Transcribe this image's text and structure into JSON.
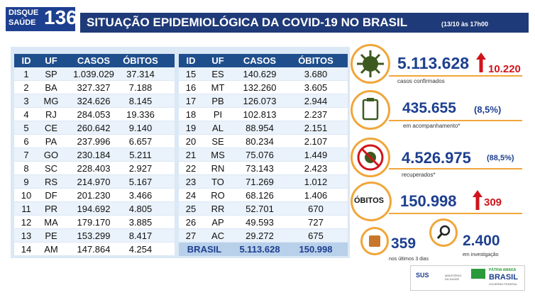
{
  "header": {
    "logo_top": "DISQUE",
    "logo_bottom": "SAÚDE",
    "logo_number": "136",
    "title": "SITUAÇÃO EPIDEMIOLÓGICA DA COVID-19 NO BRASIL",
    "timestamp": "(13/10 às 17h00"
  },
  "tables": [
    {
      "columns": [
        "ID",
        "UF",
        "CASOS",
        "ÓBITOS"
      ],
      "rows": [
        [
          "1",
          "SP",
          "1.039.029",
          "37.314"
        ],
        [
          "2",
          "BA",
          "327.327",
          "7.188"
        ],
        [
          "3",
          "MG",
          "324.626",
          "8.145"
        ],
        [
          "4",
          "RJ",
          "284.053",
          "19.336"
        ],
        [
          "5",
          "CE",
          "260.642",
          "9.140"
        ],
        [
          "6",
          "PA",
          "237.996",
          "6.657"
        ],
        [
          "7",
          "GO",
          "230.184",
          "5.211"
        ],
        [
          "8",
          "SC",
          "228.403",
          "2.927"
        ],
        [
          "9",
          "RS",
          "214.970",
          "5.167"
        ],
        [
          "10",
          "DF",
          "201.230",
          "3.466"
        ],
        [
          "11",
          "PR",
          "194.692",
          "4.805"
        ],
        [
          "12",
          "MA",
          "179.170",
          "3.885"
        ],
        [
          "13",
          "PE",
          "153.299",
          "8.417"
        ],
        [
          "14",
          "AM",
          "147.864",
          "4.254"
        ]
      ]
    },
    {
      "columns": [
        "ID",
        "UF",
        "CASOS",
        "ÓBITOS"
      ],
      "rows": [
        [
          "15",
          "ES",
          "140.629",
          "3.680"
        ],
        [
          "16",
          "MT",
          "132.260",
          "3.605"
        ],
        [
          "17",
          "PB",
          "126.073",
          "2.944"
        ],
        [
          "18",
          "PI",
          "102.813",
          "2.237"
        ],
        [
          "19",
          "AL",
          "88.954",
          "2.151"
        ],
        [
          "20",
          "SE",
          "80.234",
          "2.107"
        ],
        [
          "21",
          "MS",
          "75.076",
          "1.449"
        ],
        [
          "22",
          "RN",
          "73.143",
          "2.423"
        ],
        [
          "23",
          "TO",
          "71.269",
          "1.012"
        ],
        [
          "24",
          "RO",
          "68.126",
          "1.406"
        ],
        [
          "25",
          "RR",
          "52.701",
          "670"
        ],
        [
          "26",
          "AP",
          "49.593",
          "727"
        ],
        [
          "27",
          "AC",
          "29.272",
          "675"
        ]
      ],
      "total": [
        "BRASIL",
        "5.113.628",
        "150.998"
      ]
    }
  ],
  "summary": {
    "confirmed": {
      "value": "5.113.628",
      "increase": "10.220",
      "label": "casos confirmados"
    },
    "monitoring": {
      "value": "435.655",
      "share": "(8,5%)",
      "label": "em acompanhamento*"
    },
    "recovered": {
      "value": "4.526.975",
      "share": "(88,5%)",
      "label": "recuperados*"
    },
    "deaths": {
      "badge": "ÓBITOS",
      "value": "150.998",
      "increase": "309"
    },
    "recent": {
      "value": "359",
      "label": "nos últimos 3 dias"
    },
    "investigation": {
      "value": "2.400",
      "label": "em investigação"
    }
  },
  "footer": {
    "sus": "SUS",
    "ministry": "MINISTÉRIO DA SAÚDE",
    "brand_top": "PÁTRIA AMADA",
    "brand_main": "BRASIL",
    "brand_bottom": "GOVERNO FEDERAL"
  }
}
